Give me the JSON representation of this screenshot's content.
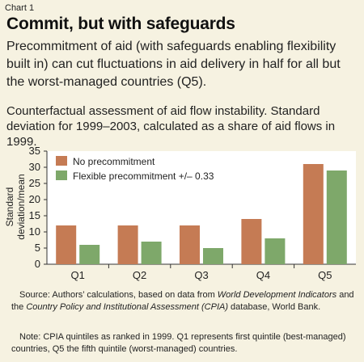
{
  "header": {
    "label": "Chart 1",
    "title": "Commit, but with safeguards",
    "subtitle": "Precommitment of aid (with safeguards enabling flexibility built in) can cut fluctuations in aid delivery in half for all but the worst-managed countries (Q5).",
    "description": "Counterfactual assessment of aid flow instability. Standard deviation for 1999–2003, calculated as a share of aid flows in 1999."
  },
  "colors": {
    "series1": "#c57b54",
    "series2": "#7ea86a",
    "background": "#f6f2e1",
    "plot_bg": "#ffffff"
  },
  "chart_data": {
    "type": "bar",
    "categories": [
      "Q1",
      "Q2",
      "Q3",
      "Q4",
      "Q5"
    ],
    "series": [
      {
        "name": "No precommitment",
        "values": [
          12,
          12,
          12,
          14,
          31
        ]
      },
      {
        "name": "Flexible precommitment +/– 0.33",
        "values": [
          6,
          7,
          5,
          8,
          29
        ]
      }
    ],
    "ylabel": "Standard deviation/mean",
    "ylim": [
      0,
      35
    ],
    "yticks": [
      0,
      5,
      10,
      15,
      20,
      25,
      30,
      35
    ],
    "grid": false,
    "legend": "top-left"
  },
  "footer": {
    "source_prefix": "Source: Authors’ calculations, based on data from ",
    "source_italic1": "World Development Indicators",
    "source_mid": " and the ",
    "source_italic2": "Country Policy and Institutional Assessment (CPIA)",
    "source_suffix": " database, World Bank.",
    "note": "Note: CPIA quintiles as ranked in 1999. Q1 represents first quintile (best-managed) countries, Q5 the fifth quintile (worst-managed) countries."
  }
}
